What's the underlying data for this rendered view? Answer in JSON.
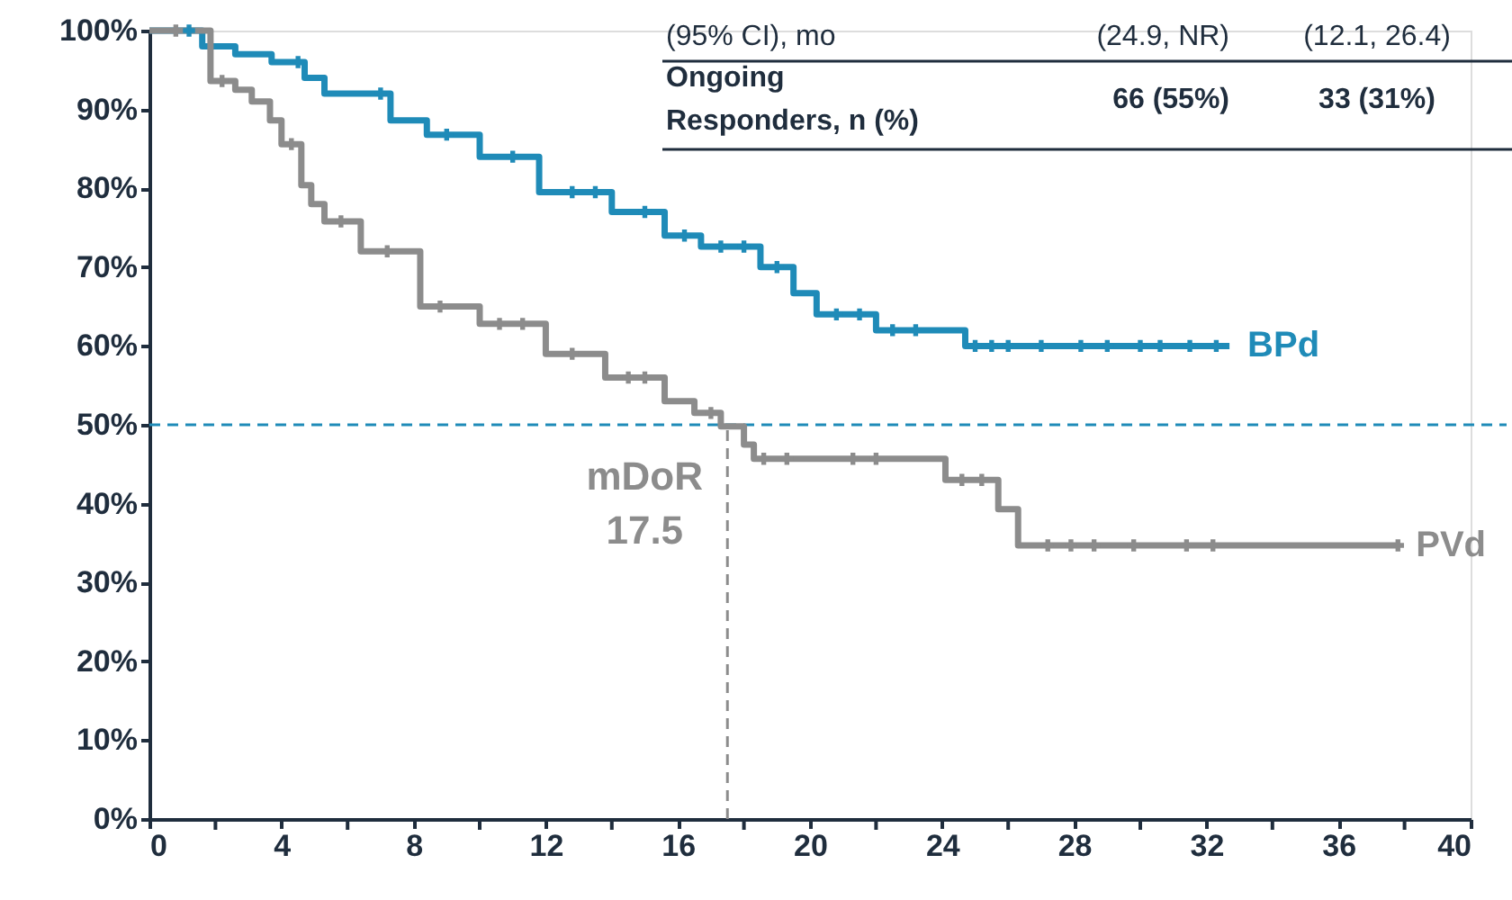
{
  "chart_data": {
    "type": "step",
    "xlim": [
      0,
      40
    ],
    "xticks": [
      0,
      {
        "value": 2,
        "label": null
      },
      4,
      {
        "value": 6,
        "label": null
      },
      8,
      {
        "value": 10,
        "label": null
      },
      12,
      {
        "value": 14,
        "label": null
      },
      16,
      {
        "value": 18,
        "label": null
      },
      20,
      {
        "value": 22,
        "label": null
      },
      24,
      {
        "value": 26,
        "label": null
      },
      28,
      {
        "value": 30,
        "label": null
      },
      32,
      {
        "value": 34,
        "label": null
      },
      36,
      {
        "value": 38,
        "label": null
      },
      40
    ],
    "ylim": [
      0,
      100
    ],
    "yticks": [
      {
        "value": 0,
        "label": "0%"
      },
      {
        "value": 10,
        "label": "10%"
      },
      {
        "value": 20,
        "label": "20%"
      },
      {
        "value": 30,
        "label": "30%"
      },
      {
        "value": 40,
        "label": "40%"
      },
      {
        "value": 50,
        "label": "50%"
      },
      {
        "value": 60,
        "label": "60%"
      },
      {
        "value": 70,
        "label": "70%"
      },
      {
        "value": 80,
        "label": "80%"
      },
      {
        "value": 90,
        "label": "90%"
      },
      {
        "value": 100,
        "label": "100%"
      }
    ],
    "grid": false,
    "legend": "right",
    "line_style": "solid",
    "series": [
      {
        "name": "BPd",
        "color": "#1f8bb8",
        "x": [
          0,
          1.6,
          2.6,
          3.7,
          4.7,
          5.3,
          7.3,
          8.4,
          10,
          11.8,
          14,
          15.6,
          16.7,
          18.5,
          19.5,
          20.2,
          22,
          24.7,
          32.7
        ],
        "values": [
          100,
          98,
          97,
          96,
          94,
          92,
          88.6,
          86.8,
          84,
          79.5,
          77,
          74,
          72.6,
          70,
          66.7,
          64,
          62,
          60,
          60
        ]
      },
      {
        "name": "PVd",
        "color": "#8c8c8c",
        "x": [
          0,
          1.85,
          2.6,
          3.1,
          3.65,
          4,
          4.6,
          4.9,
          5.3,
          6.4,
          8.2,
          10,
          12,
          13.8,
          15.6,
          16.5,
          17.3,
          18,
          18.3,
          24.1,
          25.7,
          26.3,
          37.8
        ],
        "values": [
          100,
          93.6,
          92.5,
          91,
          88.6,
          85.6,
          80.4,
          78,
          75.8,
          72,
          65,
          62.8,
          59,
          56,
          53,
          51.5,
          49.8,
          47.5,
          45.7,
          43,
          39.3,
          34.7,
          34.7
        ]
      },
      {
        "type": "scatter",
        "marker": "cross",
        "color": "#1f8bb8",
        "x": [
          1.2,
          4.5,
          7.0,
          9.0,
          11.0,
          12.8,
          13.5,
          15.0,
          16.2,
          17.3,
          18.0,
          19.0,
          20.8,
          21.5,
          22.5,
          23.2,
          25.0,
          25.5,
          26.0,
          27.0,
          28.2,
          29.0,
          30.0,
          30.6,
          31.5,
          32.3
        ],
        "values": [
          100,
          96,
          92,
          86.8,
          84,
          79.5,
          79.5,
          77,
          74,
          72.6,
          72.6,
          70,
          64,
          64,
          62,
          62,
          60,
          60,
          60,
          60,
          60,
          60,
          60,
          60,
          60,
          60
        ]
      },
      {
        "type": "scatter",
        "marker": "cross",
        "color": "#8c8c8c",
        "x": [
          0.8,
          2.2,
          4.3,
          5.8,
          7.2,
          8.8,
          10.6,
          11.3,
          12.8,
          14.5,
          15.0,
          17.0,
          18.6,
          19.3,
          21.3,
          22.0,
          24.6,
          25.2,
          27.2,
          27.9,
          28.6,
          29.8,
          31.4,
          32.2,
          37.8
        ],
        "values": [
          100,
          93.6,
          85.6,
          75.8,
          72,
          65,
          62.8,
          62.8,
          59,
          56,
          56,
          51.5,
          45.7,
          45.7,
          45.7,
          45.7,
          43,
          43,
          34.7,
          34.7,
          34.7,
          34.7,
          34.7,
          34.7,
          34.7
        ]
      }
    ],
    "ref_lines": [
      {
        "axis": "y",
        "value": 50,
        "color": "#1f8bb8",
        "line_style": "dashed"
      },
      {
        "axis": "x",
        "value": 17.5,
        "label": "mDoR\n17.5",
        "color": "#8c8c8c",
        "line_style": "dashed"
      }
    ],
    "annotations": [
      "(95% CI), mo",
      "(24.9, NR)",
      "(12.1, 26.4)",
      "Ongoing\nResponders, n (%)",
      "66 (55%)",
      "33 (31%)"
    ]
  }
}
